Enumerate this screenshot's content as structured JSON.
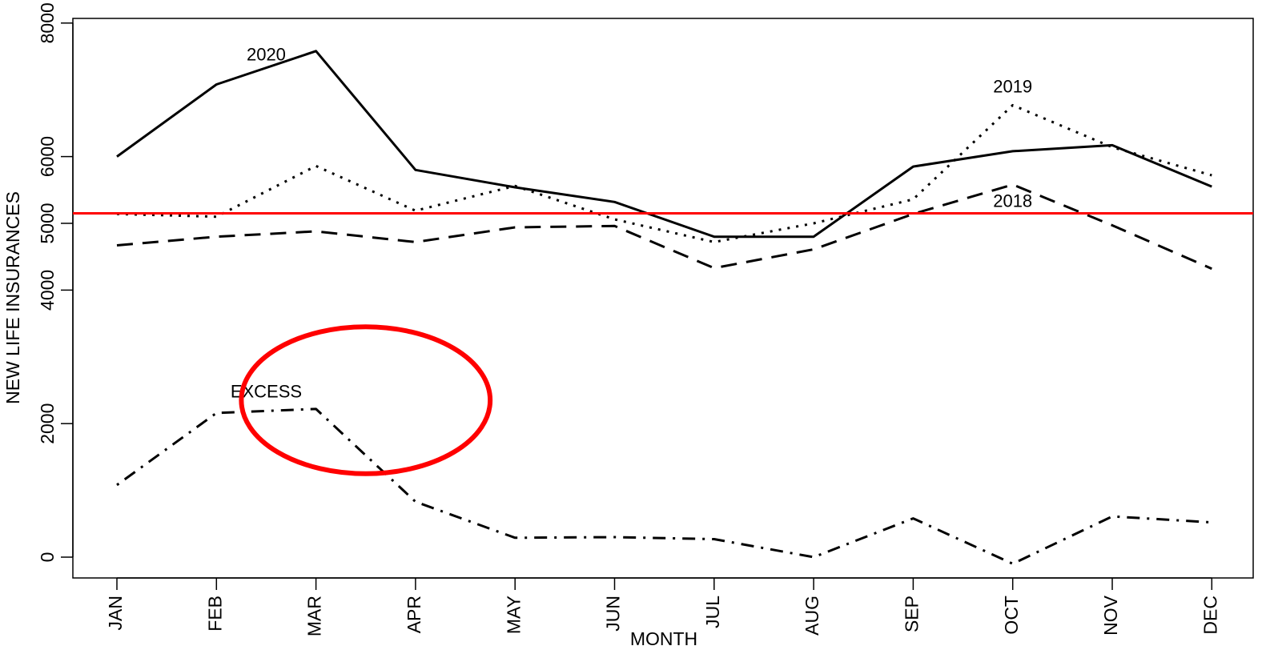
{
  "chart_data": {
    "type": "line",
    "title": "",
    "xlabel": "MONTH",
    "ylabel": "NEW LIFE INSURANCES",
    "ylim": [
      -300,
      8100
    ],
    "yticks": [
      0,
      2000,
      4000,
      5000,
      6000,
      8000
    ],
    "grid": false,
    "legend": "none",
    "categories": [
      "JAN",
      "FEB",
      "MAR",
      "APR",
      "MAY",
      "JUN",
      "JUL",
      "AUG",
      "SEP",
      "OCT",
      "NOV",
      "DEC"
    ],
    "series": [
      {
        "name": "2020",
        "style": "solid",
        "values": [
          6000,
          7080,
          7580,
          5800,
          5540,
          5320,
          4800,
          4800,
          5850,
          6080,
          6170,
          5550
        ]
      },
      {
        "name": "2019",
        "style": "dotted",
        "values": [
          5140,
          5100,
          5860,
          5190,
          5560,
          5060,
          4720,
          5000,
          5360,
          6770,
          6140,
          5720
        ]
      },
      {
        "name": "2018",
        "style": "dashed",
        "values": [
          4670,
          4800,
          4880,
          4720,
          4940,
          4960,
          4330,
          4610,
          5140,
          5580,
          4970,
          4320
        ]
      },
      {
        "name": "EXCESS",
        "style": "dotdash",
        "values": [
          1080,
          2160,
          2220,
          830,
          290,
          300,
          270,
          0,
          580,
          -100,
          610,
          520
        ]
      }
    ],
    "reference_line": {
      "value": 5150,
      "color": "#ff0000"
    },
    "annotation_ellipse": {
      "color": "#ff0000",
      "center": {
        "x": 2.5,
        "y": 2350
      },
      "radius_x": 1.25,
      "radius_y": 1100
    }
  },
  "colors": {
    "lines": "#000000",
    "accent": "#ff0000",
    "background": "#ffffff"
  }
}
